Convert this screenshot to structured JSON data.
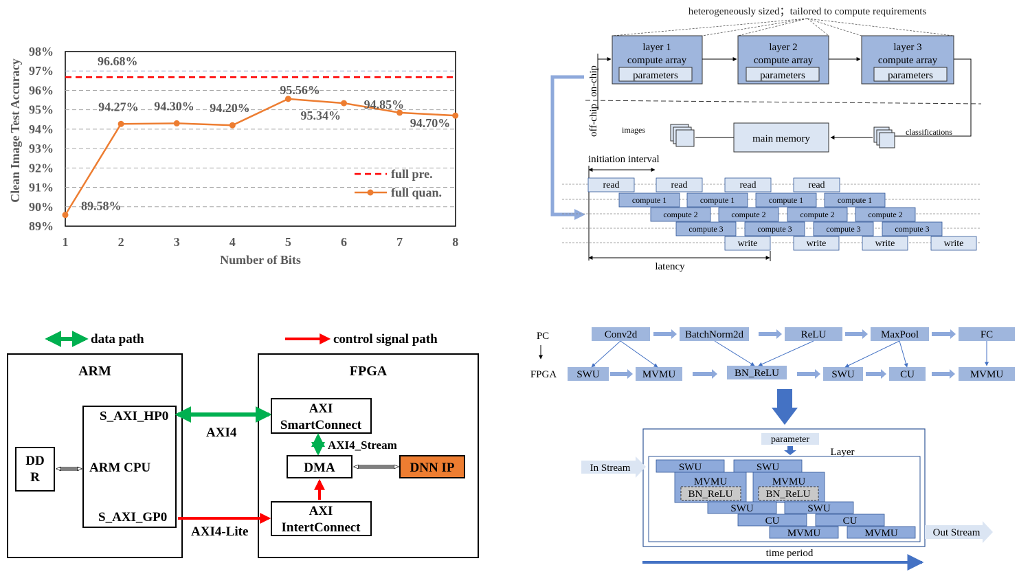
{
  "chart": {
    "ylabel": "Clean Image Test Accuracy",
    "xlabel": "Number of Bits",
    "yticks": [
      "89%",
      "90%",
      "91%",
      "92%",
      "93%",
      "94%",
      "95%",
      "96%",
      "97%",
      "98%"
    ],
    "xticks": [
      "1",
      "2",
      "3",
      "4",
      "5",
      "6",
      "7",
      "8"
    ],
    "legend": [
      "full pre.",
      "full quan."
    ],
    "ref_label": "96.68%",
    "point_labels": [
      "89.58%",
      "94.27%",
      "94.30%",
      "94.20%",
      "95.56%",
      "95.34%",
      "94.85%",
      "94.70%"
    ]
  },
  "chart_data": {
    "type": "line",
    "x": [
      1,
      2,
      3,
      4,
      5,
      6,
      7,
      8
    ],
    "series": [
      {
        "name": "full quan.",
        "values": [
          89.58,
          94.27,
          94.3,
          94.2,
          95.56,
          95.34,
          94.85,
          94.7
        ]
      },
      {
        "name": "full pre.",
        "values": [
          96.68,
          96.68,
          96.68,
          96.68,
          96.68,
          96.68,
          96.68,
          96.68
        ]
      }
    ],
    "xlabel": "Number of Bits",
    "ylabel": "Clean Image Test Accuracy",
    "xlim": [
      1,
      8
    ],
    "ylim": [
      89,
      98
    ],
    "grid": true,
    "legend_position": "bottom-right",
    "colors": {
      "full quan.": "#ed7d31",
      "full pre.": "#ff0000"
    }
  },
  "pipeline": {
    "top_note": "heterogeneously sized；tailored to compute requirements",
    "layers": [
      {
        "title1": "layer 1",
        "title2": "compute array",
        "param": "parameters"
      },
      {
        "title1": "layer 2",
        "title2": "compute array",
        "param": "parameters"
      },
      {
        "title1": "layer 3",
        "title2": "compute array",
        "param": "parameters"
      }
    ],
    "on_chip": "on-chip",
    "off_chip": "off-chip",
    "images": "images",
    "main_memory": "main memory",
    "classifications": "classifications",
    "initiation_interval": "initiation interval",
    "latency": "latency",
    "read": "read",
    "compute1": "compute 1",
    "compute2": "compute 2",
    "compute3": "compute 3",
    "write": "write"
  },
  "soc": {
    "legend_data": "data path",
    "legend_control": "control signal path",
    "arm": "ARM",
    "fpga": "FPGA",
    "s_axi_hp0": "S_AXI_HP0",
    "arm_cpu": "ARM CPU",
    "s_axi_gp0": "S_AXI_GP0",
    "ddr1": "DD",
    "ddr2": "R",
    "axi4": "AXI4",
    "axi4_lite": "AXI4-Lite",
    "smart1": "AXI",
    "smart2": "SmartConnect",
    "axi4_stream": "AXI4_Stream",
    "dma": "DMA",
    "dnn_ip": "DNN IP",
    "inter1": "AXI",
    "inter2": "IntertConnect"
  },
  "mapping": {
    "pc": "PC",
    "fpga": "FPGA",
    "pc_ops": [
      "Conv2d",
      "BatchNorm2d",
      "ReLU",
      "MaxPool",
      "FC"
    ],
    "fpga_ops": [
      "SWU",
      "MVMU",
      "BN_ReLU",
      "SWU",
      "CU",
      "MVMU"
    ],
    "parameter": "parameter",
    "layer": "Layer",
    "in_stream": "In Stream",
    "out_stream": "Out Stream",
    "time_period": "time period",
    "swu": "SWU",
    "mvmu": "MVMU",
    "bn_relu": "BN_ReLU",
    "cu": "CU"
  },
  "colors": {
    "orange": "#ed7d31",
    "ref_red": "#ff0000",
    "green": "#00b050",
    "ctrl_red": "#ff0000",
    "block_blue": "#9fb6dd",
    "light_blue": "#dbe5f3",
    "arrow_blue": "#4472c4",
    "dnn_orange": "#ed7d31"
  }
}
